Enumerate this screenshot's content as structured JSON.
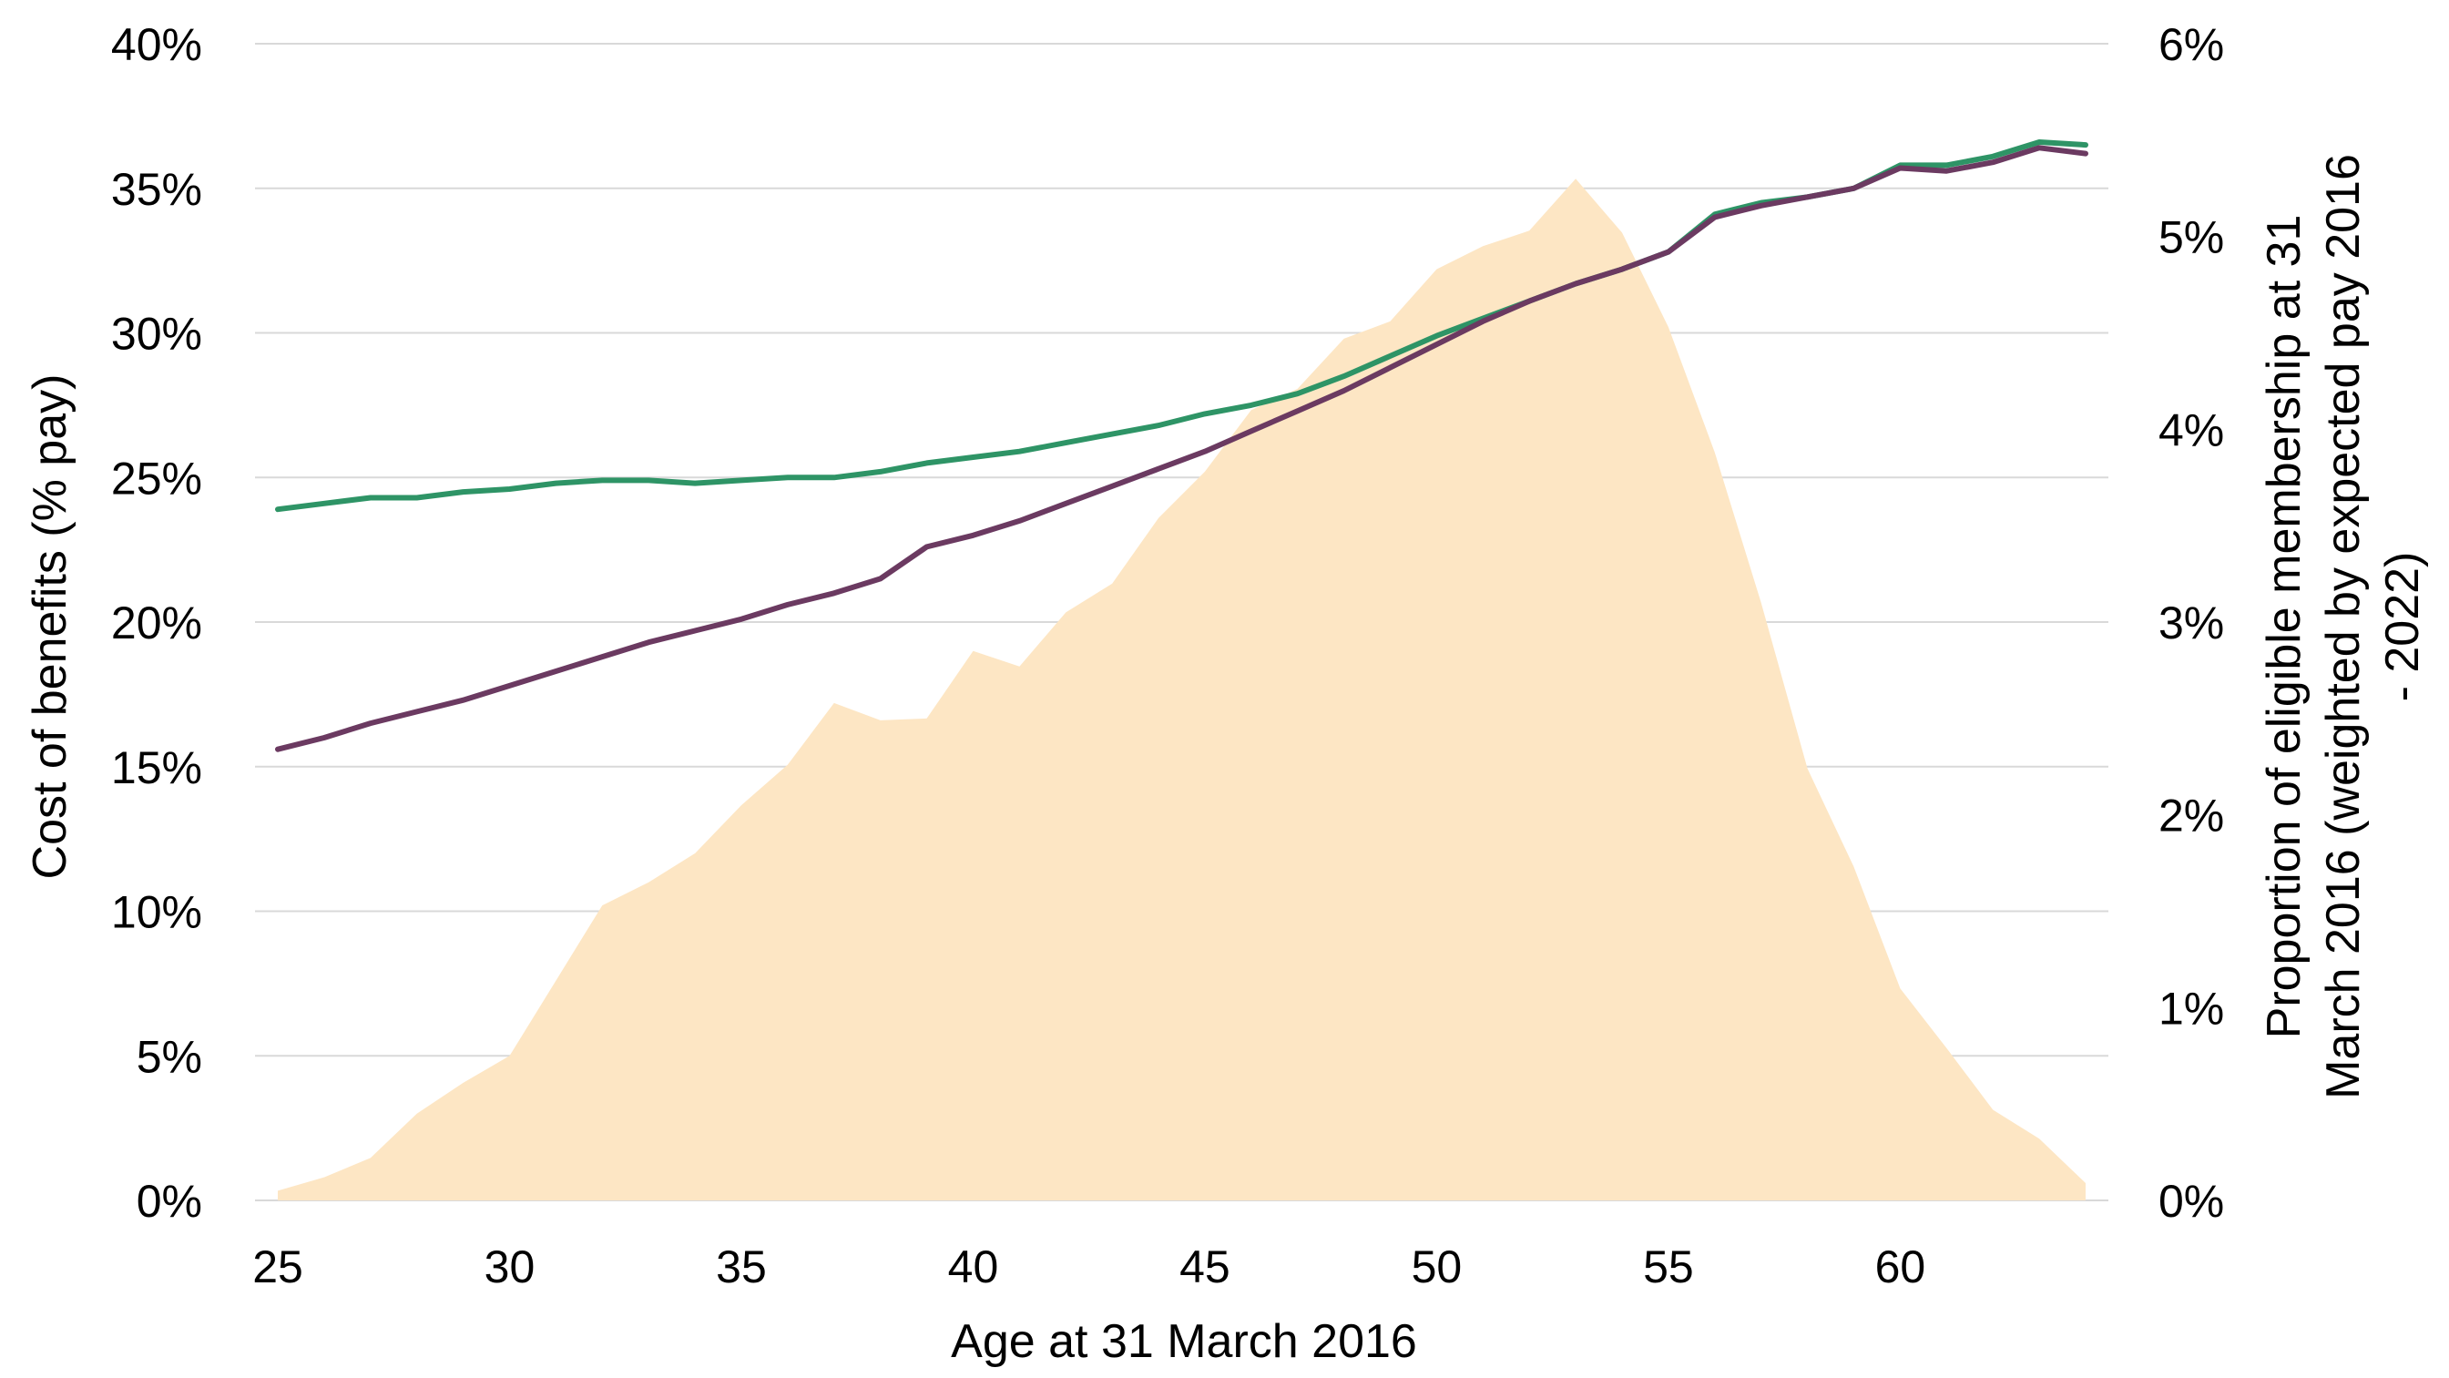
{
  "chart_data": {
    "type": "line",
    "title": "",
    "xlabel": "Age at 31 March 2016",
    "ylabel": "Cost of benefits (% pay)",
    "y2label": "Proportion of eligible membership at 31 March 2016 (weighted by expected pay 2016 - 2022)",
    "y2label_lines": [
      "Proportion of eligible membership at 31",
      "March 2016 (weighted by expected pay 2016",
      "- 2022)"
    ],
    "xlim": [
      25,
      64
    ],
    "x_ticks": [
      25,
      30,
      35,
      40,
      45,
      50,
      55,
      60
    ],
    "ylim": [
      0,
      40
    ],
    "y_ticks": [
      0,
      5,
      10,
      15,
      20,
      25,
      30,
      35,
      40
    ],
    "y_tick_labels": [
      "0%",
      "5%",
      "10%",
      "15%",
      "20%",
      "25%",
      "30%",
      "35%",
      "40%"
    ],
    "y2lim": [
      0,
      6
    ],
    "y2_ticks": [
      0,
      1,
      2,
      3,
      4,
      5,
      6
    ],
    "y2_tick_labels": [
      "0%",
      "1%",
      "2%",
      "3%",
      "4%",
      "5%",
      "6%"
    ],
    "grid": true,
    "legend": "none",
    "x": [
      25,
      26,
      27,
      28,
      29,
      30,
      31,
      32,
      33,
      34,
      35,
      36,
      37,
      38,
      39,
      40,
      41,
      42,
      43,
      44,
      45,
      46,
      47,
      48,
      49,
      50,
      51,
      52,
      53,
      54,
      55,
      56,
      57,
      58,
      59,
      60,
      61,
      62,
      63,
      64
    ],
    "series": [
      {
        "axis": "right",
        "kind": "area",
        "color": "#fde6c4",
        "values": [
          0.05,
          0.12,
          0.22,
          0.45,
          0.61,
          0.75,
          1.14,
          1.53,
          1.65,
          1.8,
          2.05,
          2.26,
          2.58,
          2.49,
          2.5,
          2.85,
          2.77,
          3.05,
          3.2,
          3.54,
          3.78,
          4.1,
          4.21,
          4.47,
          4.56,
          4.83,
          4.95,
          5.03,
          5.3,
          5.02,
          4.53,
          3.88,
          3.1,
          2.24,
          1.73,
          1.1,
          0.79,
          0.47,
          0.32,
          0.09
        ]
      },
      {
        "axis": "left",
        "kind": "line",
        "color": "#2e9466",
        "values": [
          23.9,
          24.1,
          24.3,
          24.3,
          24.5,
          24.6,
          24.8,
          24.9,
          24.9,
          24.8,
          24.9,
          25.0,
          25.0,
          25.2,
          25.5,
          25.7,
          25.9,
          26.2,
          26.5,
          26.8,
          27.2,
          27.5,
          27.9,
          28.5,
          29.2,
          29.9,
          30.5,
          31.1,
          31.7,
          32.2,
          32.8,
          34.1,
          34.5,
          34.7,
          35.0,
          35.8,
          35.8,
          36.1,
          36.6,
          36.5
        ]
      },
      {
        "axis": "left",
        "kind": "line",
        "color": "#6b3a61",
        "values": [
          15.6,
          16.0,
          16.5,
          16.9,
          17.3,
          17.8,
          18.3,
          18.8,
          19.3,
          19.7,
          20.1,
          20.6,
          21.0,
          21.5,
          22.6,
          23.0,
          23.5,
          24.1,
          24.7,
          25.3,
          25.9,
          26.6,
          27.3,
          28.0,
          28.8,
          29.6,
          30.4,
          31.1,
          31.7,
          32.2,
          32.8,
          34.0,
          34.4,
          34.7,
          35.0,
          35.7,
          35.6,
          35.9,
          36.4,
          36.2
        ]
      }
    ]
  }
}
